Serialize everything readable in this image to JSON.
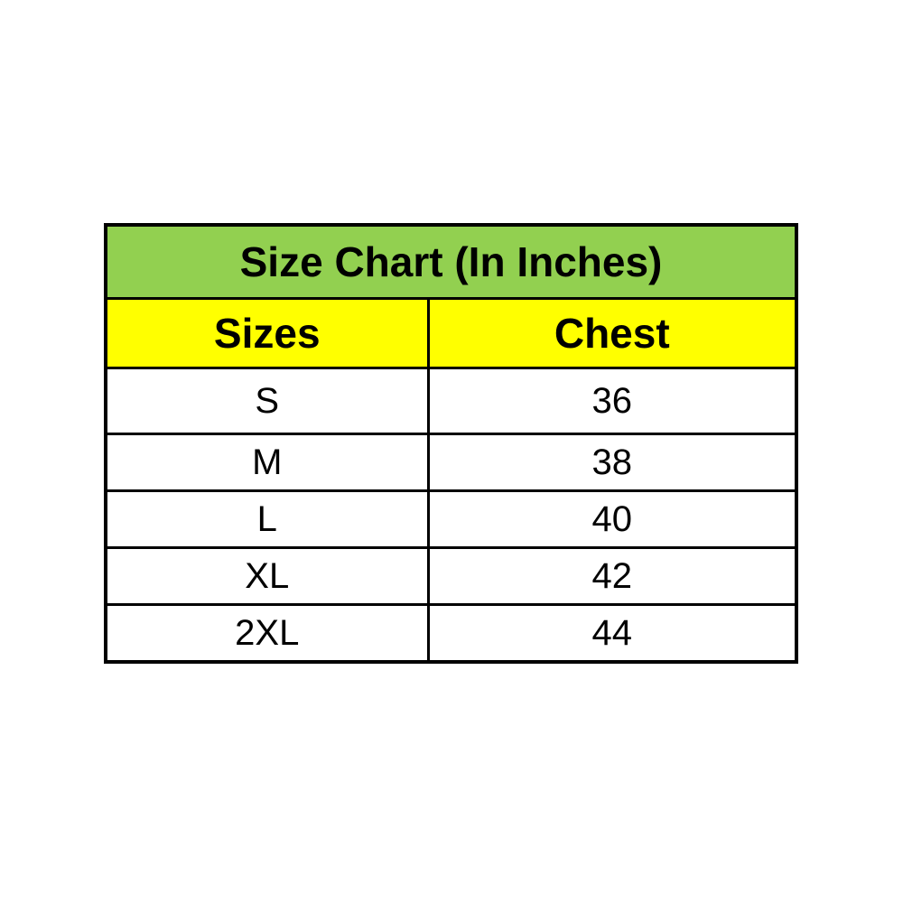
{
  "page": {
    "background": "#FFFFFF"
  },
  "table": {
    "title": "Size Chart (In Inches)",
    "headers": {
      "sizes": "Sizes",
      "chest": "Chest"
    },
    "rows": [
      {
        "size": "S",
        "chest": "36"
      },
      {
        "size": "M",
        "chest": "38"
      },
      {
        "size": "L",
        "chest": "40"
      },
      {
        "size": "XL",
        "chest": "42"
      },
      {
        "size": "2XL",
        "chest": "44"
      }
    ],
    "colors": {
      "title_bg": "#92D050",
      "header_bg": "#FFFF00",
      "row_bg": "#FFFFFF",
      "border": "#000000",
      "text": "#000000"
    }
  },
  "chart_data": {
    "type": "table",
    "title": "Size Chart (In Inches)",
    "columns": [
      "Sizes",
      "Chest"
    ],
    "rows": [
      [
        "S",
        "36"
      ],
      [
        "M",
        "38"
      ],
      [
        "L",
        "40"
      ],
      [
        "XL",
        "42"
      ],
      [
        "2XL",
        "44"
      ]
    ],
    "units": "inches",
    "layout_hints": {
      "title_row_color": "#92D050",
      "header_row_color": "#FFFF00",
      "grid": true
    }
  }
}
